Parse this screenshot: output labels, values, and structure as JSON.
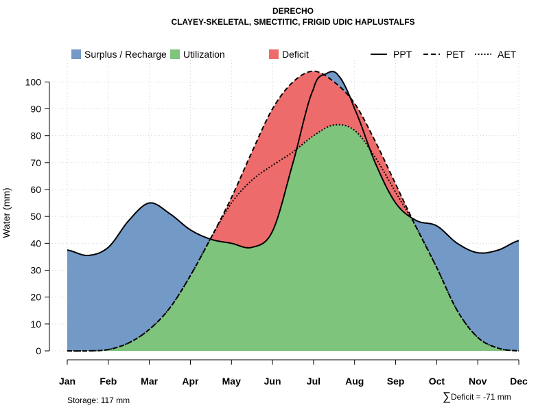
{
  "chart_data": {
    "type": "area",
    "title": "DERECHO",
    "subtitle": "CLAYEY-SKELETAL, SMECTITIC, FRIGID UDIC HAPLUSTALFS",
    "xlabel": "",
    "ylabel": "Water (mm)",
    "ylim": [
      0,
      108
    ],
    "yticks": [
      0,
      10,
      20,
      30,
      40,
      50,
      60,
      70,
      80,
      90,
      100
    ],
    "grid": true,
    "categories": [
      "Jan",
      "Feb",
      "Mar",
      "Apr",
      "May",
      "Jun",
      "Jul",
      "Aug",
      "Sep",
      "Oct",
      "Nov",
      "Dec"
    ],
    "series": [
      {
        "name": "PPT",
        "style": "solid",
        "x": [
          1,
          1.5,
          2,
          2.5,
          3,
          3.5,
          4,
          4.5,
          5,
          5.5,
          6,
          6.5,
          7,
          7.3,
          7.6,
          8,
          8.5,
          9,
          9.5,
          10,
          10.5,
          11,
          11.5,
          12
        ],
        "values": [
          37.5,
          35.5,
          38.5,
          48.5,
          55,
          51,
          45,
          41.5,
          40,
          38.5,
          44.5,
          70,
          97.5,
          103,
          102.5,
          90,
          70,
          55,
          48.5,
          46.5,
          40,
          36.5,
          37.5,
          41
        ]
      },
      {
        "name": "PET",
        "style": "dashed",
        "x": [
          1,
          1.5,
          2,
          2.5,
          3,
          3.5,
          4,
          4.5,
          5,
          5.5,
          6,
          6.5,
          7,
          7.5,
          8,
          8.5,
          9,
          9.5,
          10,
          10.5,
          11,
          11.5,
          12
        ],
        "values": [
          0,
          0,
          0.5,
          3,
          8,
          16,
          28,
          42,
          57,
          74,
          90,
          100,
          104,
          100,
          92,
          78,
          62,
          46,
          31,
          15,
          5,
          1,
          0
        ]
      },
      {
        "name": "AET",
        "style": "dotted",
        "x": [
          1,
          1.5,
          2,
          2.5,
          3,
          3.5,
          4,
          4.5,
          5,
          5.5,
          6,
          6.5,
          7,
          7.5,
          8,
          8.5,
          9,
          9.5,
          10,
          10.5,
          11,
          11.5,
          12
        ],
        "values": [
          0,
          0,
          0.5,
          3,
          8,
          16,
          28,
          42,
          55,
          63.5,
          69,
          74,
          80,
          84,
          82,
          72,
          59,
          46,
          31,
          15,
          5,
          1,
          0
        ]
      }
    ],
    "regions": [
      {
        "name": "Surplus / Recharge",
        "color": "#7399c6",
        "description": "between PPT and PET where PPT exceeds PET"
      },
      {
        "name": "Utilization",
        "color": "#7fc47d",
        "description": "area under AET"
      },
      {
        "name": "Deficit",
        "color": "#ee6b6b",
        "description": "between AET and PET where PET exceeds PPT"
      }
    ],
    "legend": {
      "placement": "top",
      "entries": [
        {
          "label": "Surplus / Recharge",
          "kind": "fill",
          "color": "#7399c6"
        },
        {
          "label": "Utilization",
          "kind": "fill",
          "color": "#7fc47d"
        },
        {
          "label": "Deficit",
          "kind": "fill",
          "color": "#ee6b6b"
        },
        {
          "label": "PPT",
          "kind": "line",
          "style": "solid"
        },
        {
          "label": "PET",
          "kind": "line",
          "style": "dashed"
        },
        {
          "label": "AET",
          "kind": "line",
          "style": "dotted"
        }
      ]
    },
    "annotations": {
      "storage": "Storage: 117 mm",
      "deficit_symbol": "∑",
      "deficit": "Deficit = -71 mm"
    }
  }
}
